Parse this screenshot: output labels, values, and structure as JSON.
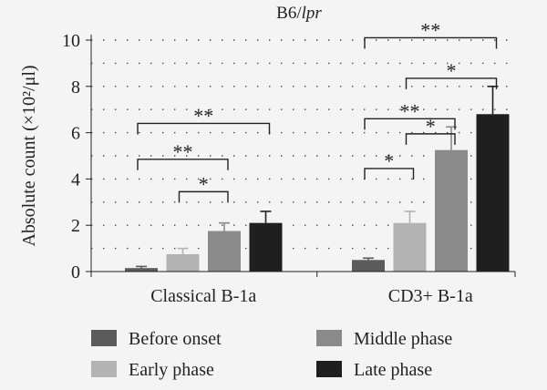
{
  "chart_data": {
    "type": "bar",
    "title": "B6/",
    "title_italic": "lpr",
    "ylabel": "Absolute count (×10²/μl)",
    "xlabel": "",
    "ylim": [
      0,
      10
    ],
    "yticks": [
      0,
      2,
      4,
      6,
      8,
      10
    ],
    "grid": "dotted horizontal",
    "categories": [
      "Classical B-1a",
      "CD3+ B-1a"
    ],
    "series": [
      {
        "name": "Before onset",
        "color": "#5b5b5b",
        "values": [
          0.15,
          0.5
        ],
        "errors": [
          0.07,
          0.08
        ]
      },
      {
        "name": "Early phase",
        "color": "#b3b3b3",
        "values": [
          0.75,
          2.1
        ],
        "errors": [
          0.25,
          0.5
        ]
      },
      {
        "name": "Middle phase",
        "color": "#8a8a8a",
        "values": [
          1.75,
          5.25
        ],
        "errors": [
          0.35,
          1.0
        ]
      },
      {
        "name": "Late phase",
        "color": "#1f1f1f",
        "values": [
          2.1,
          6.8
        ],
        "errors": [
          0.5,
          1.2
        ]
      }
    ],
    "legend": {
      "placement": "bottom",
      "order": [
        0,
        2,
        1,
        3
      ]
    },
    "significance": [
      {
        "category": 0,
        "from": 1,
        "to": 2,
        "label": "*",
        "y": 3.45
      },
      {
        "category": 0,
        "from": 0,
        "to": 2,
        "label": "**",
        "y": 4.85
      },
      {
        "category": 0,
        "from": 0,
        "to": 3,
        "label": "**",
        "y": 6.4
      },
      {
        "category": 1,
        "from": 0,
        "to": 1,
        "label": "*",
        "y": 4.45
      },
      {
        "category": 1,
        "from": 1,
        "to": 2,
        "label": "*",
        "y": 5.95
      },
      {
        "category": 1,
        "from": 0,
        "to": 2,
        "label": "**",
        "y": 6.6
      },
      {
        "category": 1,
        "from": 1,
        "to": 3,
        "label": "*",
        "y": 8.35
      },
      {
        "category": 1,
        "from": 0,
        "to": 3,
        "label": "**",
        "y": 10.1
      }
    ]
  }
}
